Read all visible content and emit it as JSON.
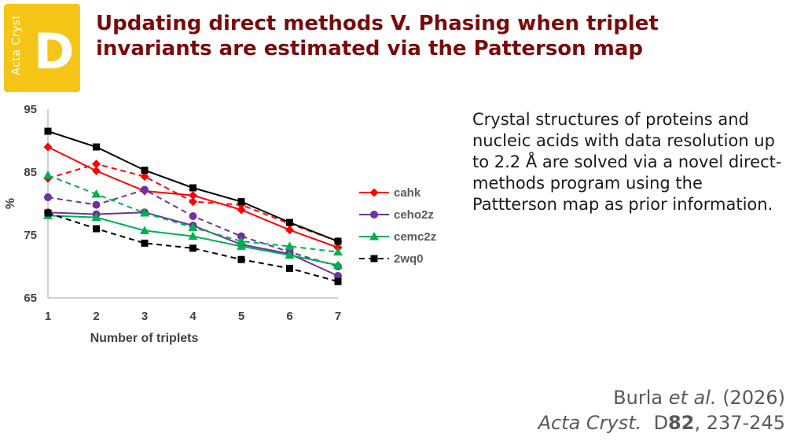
{
  "badge": {
    "journal_small": "Acta Cryst",
    "letter": "D",
    "color": "#f5c518"
  },
  "title": "Updating direct methods V. Phasing when triplet invariants are estimated via the Patterson map",
  "description": "Crystal structures of proteins and nucleic acids with data resolution up to 2.2 Å are solved via a novel direct-methods program using the Pattterson map as prior information.",
  "citation": {
    "authors": "Burla",
    "etal": "et al.",
    "year": "(2026)",
    "journal": "Acta Cryst.",
    "section": "D",
    "volume": "82",
    "pages": ", 237-245"
  },
  "chart_data": {
    "type": "line",
    "xlabel": "Number of triplets",
    "ylabel": "%",
    "x": [
      1,
      2,
      3,
      4,
      5,
      6,
      7
    ],
    "ylim": [
      65,
      95
    ],
    "yticks": [
      65,
      75,
      85,
      95
    ],
    "legend_position": "right",
    "series": [
      {
        "name": "cahk",
        "color": "#ff0000",
        "marker": "diamond",
        "solid": [
          89,
          85.2,
          82,
          81.3,
          79,
          75.8,
          73
        ],
        "dashed": [
          84,
          86.3,
          84.3,
          80.3,
          79.8,
          76.8,
          74
        ]
      },
      {
        "name": "ceho2z",
        "color": "#7030a0",
        "marker": "circle",
        "solid": [
          78.6,
          78.3,
          78.6,
          76.5,
          73.5,
          72,
          68.5
        ],
        "dashed": [
          81,
          79.8,
          82.2,
          78,
          74.8,
          72.3,
          70
        ]
      },
      {
        "name": "cemc2z",
        "color": "#00b050",
        "marker": "triangle",
        "solid": [
          78.1,
          77.8,
          75.7,
          74.8,
          73.2,
          71.8,
          70.2
        ],
        "dashed": [
          84.5,
          81.5,
          78.5,
          76.2,
          74,
          73.2,
          72.3
        ]
      },
      {
        "name": "2wq0",
        "color": "#000000",
        "marker": "square",
        "solid": [
          91.5,
          89,
          85.3,
          82.5,
          80.3,
          77,
          74
        ],
        "dashed": [
          78.5,
          76,
          73.7,
          72.9,
          71.1,
          69.7,
          67.6
        ]
      }
    ]
  }
}
